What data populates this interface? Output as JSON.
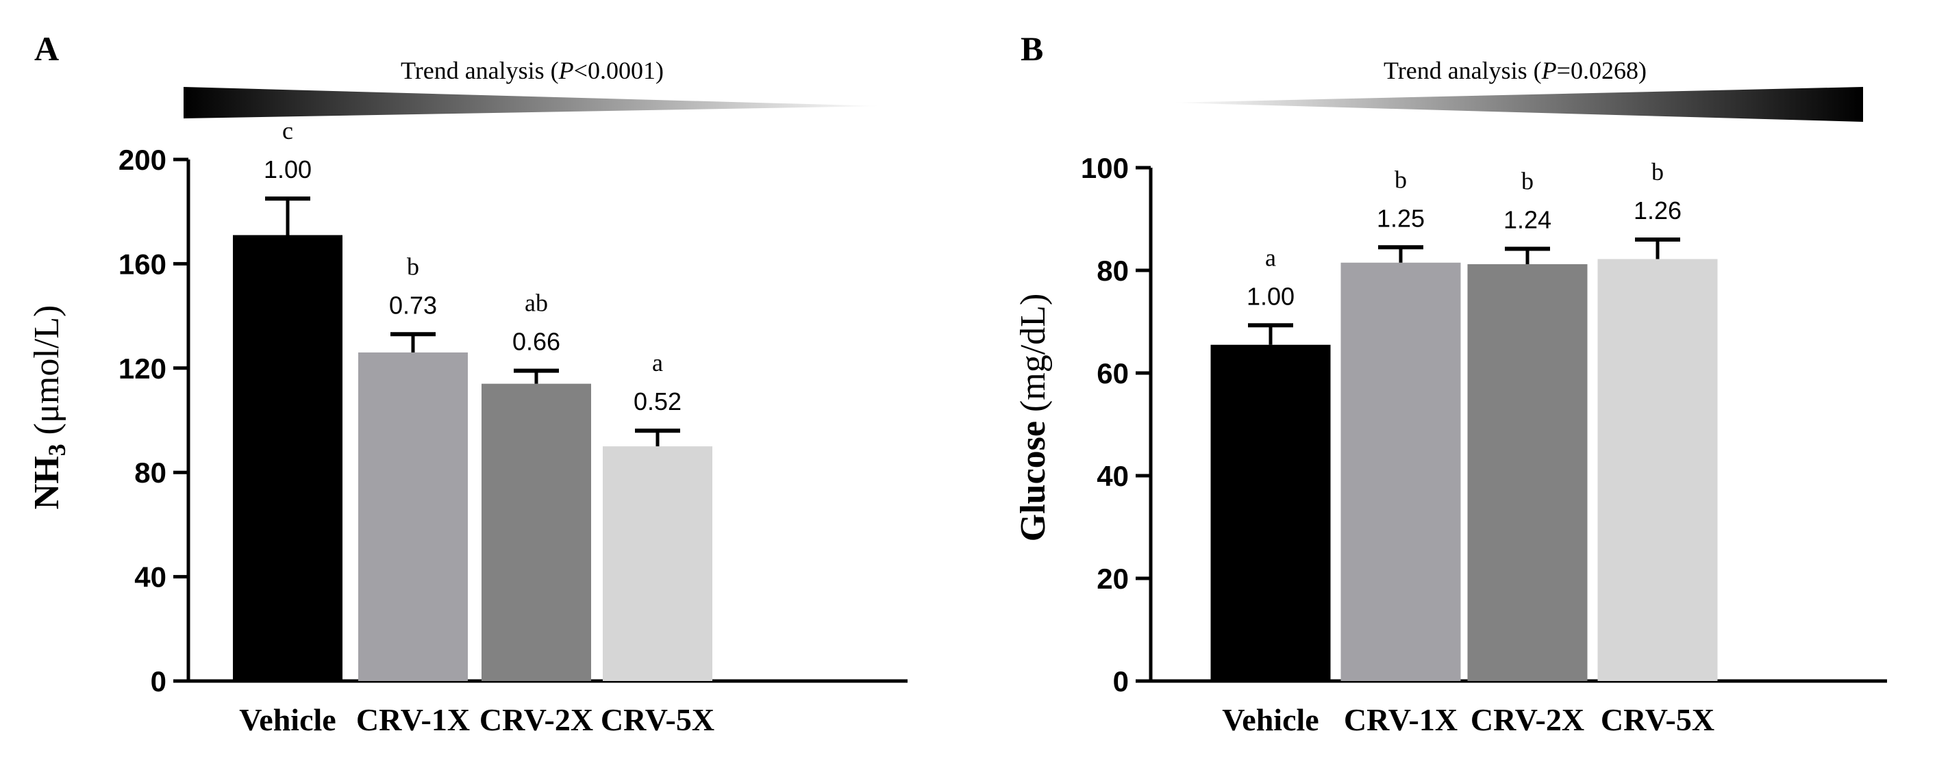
{
  "chart_data": [
    {
      "type": "bar",
      "panel_label": "A",
      "trend": {
        "prefix": "Trend analysis (",
        "p_symbol": "P",
        "p_relation": "<",
        "p_value": "0.0001",
        "suffix": ")",
        "direction": "decreasing"
      },
      "ylabel": {
        "main": "NH",
        "sub": "3",
        "unit": " (μmol/L)"
      },
      "ylim": [
        0,
        200
      ],
      "yticks": [
        0,
        40,
        80,
        120,
        160,
        200
      ],
      "categories": [
        "Vehicle",
        "CRV-1X",
        "CRV-2X",
        "CRV-5X"
      ],
      "values": [
        171,
        126,
        114,
        90
      ],
      "errors": [
        14,
        7,
        5,
        6
      ],
      "fold_labels": [
        "1.00",
        "0.73",
        "0.66",
        "0.52"
      ],
      "letters": [
        "c",
        "b",
        "ab",
        "a"
      ],
      "colors": [
        "#000000",
        "#a2a1a6",
        "#828282",
        "#d6d6d6"
      ]
    },
    {
      "type": "bar",
      "panel_label": "B",
      "trend": {
        "prefix": "Trend analysis (",
        "p_symbol": "P",
        "p_relation": "=",
        "p_value": "0.0268",
        "suffix": ")",
        "direction": "increasing"
      },
      "ylabel": {
        "main": "Glucose",
        "sub": "",
        "unit": " (mg/dL)"
      },
      "ylim": [
        0,
        100
      ],
      "yticks": [
        0,
        20,
        40,
        60,
        80,
        100
      ],
      "categories": [
        "Vehicle",
        "CRV-1X",
        "CRV-2X",
        "CRV-5X"
      ],
      "values": [
        65.5,
        81.5,
        81.2,
        82.2
      ],
      "errors": [
        3.8,
        3.0,
        3.0,
        3.8
      ],
      "fold_labels": [
        "1.00",
        "1.25",
        "1.24",
        "1.26"
      ],
      "letters": [
        "a",
        "b",
        "b",
        "b"
      ],
      "colors": [
        "#000000",
        "#a2a1a6",
        "#828282",
        "#d6d6d6"
      ]
    }
  ]
}
